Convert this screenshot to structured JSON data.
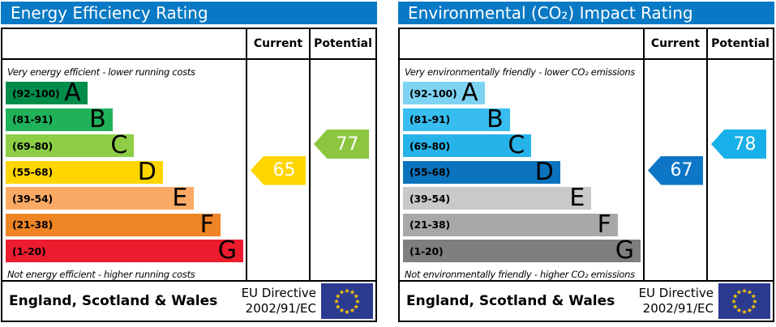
{
  "accent": {
    "header_bg": "#0879c4",
    "border": "#000000",
    "flag_bg": "#2b3a8f",
    "star": "#ffcc00"
  },
  "panels": [
    {
      "title": "Energy Efficiency Rating",
      "columns": {
        "current": "Current",
        "potential": "Potential"
      },
      "top_caption": "Very energy efficient - lower running costs",
      "bottom_caption": "Not energy efficient - higher running costs",
      "bands": [
        {
          "letter": "A",
          "range": "(92-100)",
          "color": "#008c4a",
          "width_pct": 34
        },
        {
          "letter": "B",
          "range": "(81-91)",
          "color": "#1fb25a",
          "width_pct": 44.5
        },
        {
          "letter": "C",
          "range": "(69-80)",
          "color": "#8dce46",
          "width_pct": 53.5
        },
        {
          "letter": "D",
          "range": "(55-68)",
          "color": "#ffd500",
          "width_pct": 65.5
        },
        {
          "letter": "E",
          "range": "(39-54)",
          "color": "#fbaa65",
          "width_pct": 78.5
        },
        {
          "letter": "F",
          "range": "(21-38)",
          "color": "#ef8425",
          "width_pct": 89.5
        },
        {
          "letter": "G",
          "range": "(1-20)",
          "color": "#ec1c2e",
          "width_pct": 99
        }
      ],
      "current": {
        "value": 65,
        "band": "D",
        "color": "#ffd500"
      },
      "potential": {
        "value": 77,
        "band": "C",
        "color": "#8cc63f"
      },
      "footer": {
        "region": "England, Scotland & Wales",
        "directive": [
          "EU Directive",
          "2002/91/EC"
        ]
      }
    },
    {
      "title": "Environmental (CO₂) Impact Rating",
      "columns": {
        "current": "Current",
        "potential": "Potential"
      },
      "top_caption": "Very environmentally friendly - lower CO₂ emissions",
      "bottom_caption": "Not environmentally friendly - higher CO₂ emissions",
      "bands": [
        {
          "letter": "A",
          "range": "(92-100)",
          "color": "#7ed3f3",
          "width_pct": 34
        },
        {
          "letter": "B",
          "range": "(81-91)",
          "color": "#38bdf0",
          "width_pct": 44.5
        },
        {
          "letter": "C",
          "range": "(69-80)",
          "color": "#27b3e9",
          "width_pct": 53.5
        },
        {
          "letter": "D",
          "range": "(55-68)",
          "color": "#0b73bd",
          "width_pct": 65.5
        },
        {
          "letter": "E",
          "range": "(39-54)",
          "color": "#c9c9c9",
          "width_pct": 78.5
        },
        {
          "letter": "F",
          "range": "(21-38)",
          "color": "#a8a8a8",
          "width_pct": 89.5
        },
        {
          "letter": "G",
          "range": "(1-20)",
          "color": "#7e7e7e",
          "width_pct": 99
        }
      ],
      "current": {
        "value": 67,
        "band": "D",
        "color": "#0e76c6"
      },
      "potential": {
        "value": 78,
        "band": "C",
        "color": "#18b0e8"
      },
      "footer": {
        "region": "England, Scotland & Wales",
        "directive": [
          "EU Directive",
          "2002/91/EC"
        ]
      }
    }
  ],
  "chart_data": [
    {
      "type": "bar",
      "title": "Energy Efficiency Rating",
      "categories": [
        "A",
        "B",
        "C",
        "D",
        "E",
        "F",
        "G"
      ],
      "band_ranges": [
        "92-100",
        "81-91",
        "69-80",
        "55-68",
        "39-54",
        "21-38",
        "1-20"
      ],
      "band_colors": [
        "#008c4a",
        "#1fb25a",
        "#8dce46",
        "#ffd500",
        "#fbaa65",
        "#ef8425",
        "#ec1c2e"
      ],
      "scale": [
        1,
        100
      ],
      "series": [
        {
          "name": "Current",
          "values": [
            65
          ],
          "band": "D"
        },
        {
          "name": "Potential",
          "values": [
            77
          ],
          "band": "C"
        }
      ],
      "annotations": [
        "Very energy efficient - lower running costs",
        "Not energy efficient - higher running costs",
        "England, Scotland & Wales",
        "EU Directive 2002/91/EC"
      ]
    },
    {
      "type": "bar",
      "title": "Environmental (CO₂) Impact Rating",
      "categories": [
        "A",
        "B",
        "C",
        "D",
        "E",
        "F",
        "G"
      ],
      "band_ranges": [
        "92-100",
        "81-91",
        "69-80",
        "55-68",
        "39-54",
        "21-38",
        "1-20"
      ],
      "band_colors": [
        "#7ed3f3",
        "#38bdf0",
        "#27b3e9",
        "#0b73bd",
        "#c9c9c9",
        "#a8a8a8",
        "#7e7e7e"
      ],
      "scale": [
        1,
        100
      ],
      "series": [
        {
          "name": "Current",
          "values": [
            67
          ],
          "band": "D"
        },
        {
          "name": "Potential",
          "values": [
            78
          ],
          "band": "C"
        }
      ],
      "annotations": [
        "Very environmentally friendly - lower CO₂ emissions",
        "Not environmentally friendly - higher CO₂ emissions",
        "England, Scotland & Wales",
        "EU Directive 2002/91/EC"
      ]
    }
  ]
}
